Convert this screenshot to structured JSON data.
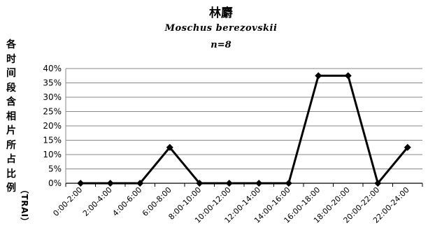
{
  "chart_data": {
    "type": "line",
    "title": "林麝",
    "subtitle": "Moschus berezovskii",
    "sample": "n=8",
    "ylabel_cjk": "各时间段含相片所占比例",
    "ylabel_paren": "（TRAI）",
    "categories": [
      "0:00-2:00",
      "2:00-4:00",
      "4:00-6:00",
      "6:00-8:00",
      "8:00-10:00",
      "10:00-12:00",
      "12:00-14:00",
      "14:00-16:00",
      "16:00-18:00",
      "18:00-20:00",
      "20:00-22:00",
      "22:00-24:00"
    ],
    "values": [
      0,
      0,
      0,
      12.5,
      0,
      0,
      0,
      0,
      37.5,
      37.5,
      0,
      12.5
    ],
    "yticks": [
      "0%",
      "5%",
      "10%",
      "15%",
      "20%",
      "25%",
      "30%",
      "35%",
      "40%"
    ],
    "ylim": [
      0,
      40
    ],
    "grid": true,
    "marker": "diamond",
    "line_color": "#000000"
  }
}
